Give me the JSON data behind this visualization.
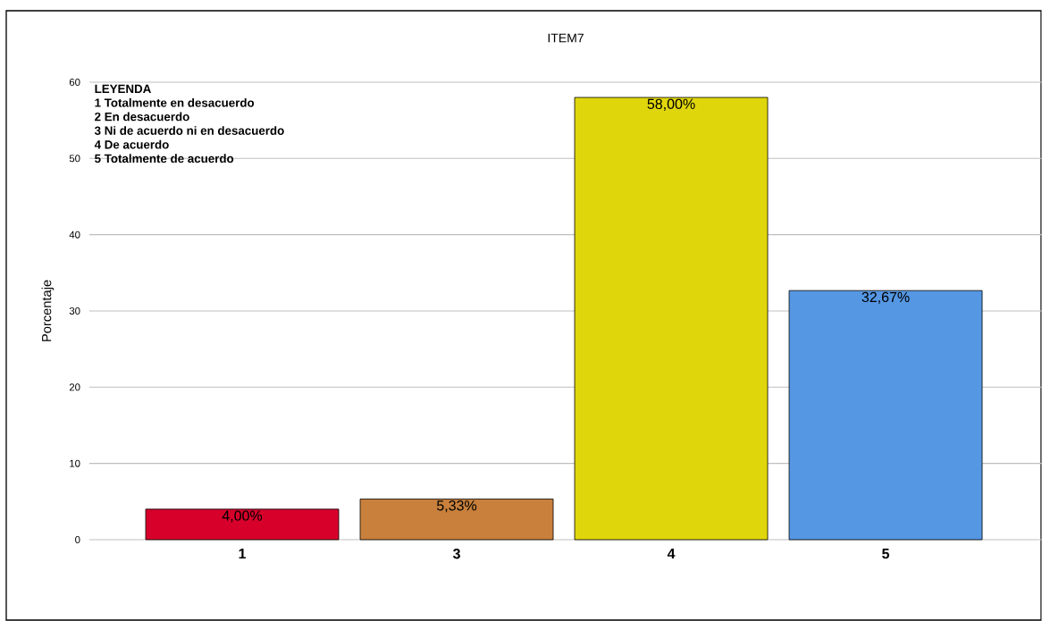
{
  "chart_data": {
    "type": "bar",
    "title": "ITEM7",
    "ylabel": "Porcentaje",
    "categories": [
      "1",
      "3",
      "4",
      "5"
    ],
    "values": [
      4.0,
      5.33,
      58.0,
      32.67
    ],
    "colors": [
      "#d7002b",
      "#c8803c",
      "#e0d60c",
      "#5597e3"
    ],
    "value_labels": [
      "4,00%",
      "5,33%",
      "58,00%",
      "32,67%"
    ],
    "ylim": [
      0,
      60
    ],
    "yticks": [
      0,
      10,
      20,
      30,
      40,
      50,
      60
    ],
    "grid": "y",
    "annotations": [
      "LEYENDA",
      "1 Totalmente en desacuerdo",
      "2 En desacuerdo",
      "3 Ni de acuerdo ni en desacuerdo",
      "4 De acuerdo",
      "5 Totalmente de acuerdo"
    ]
  }
}
